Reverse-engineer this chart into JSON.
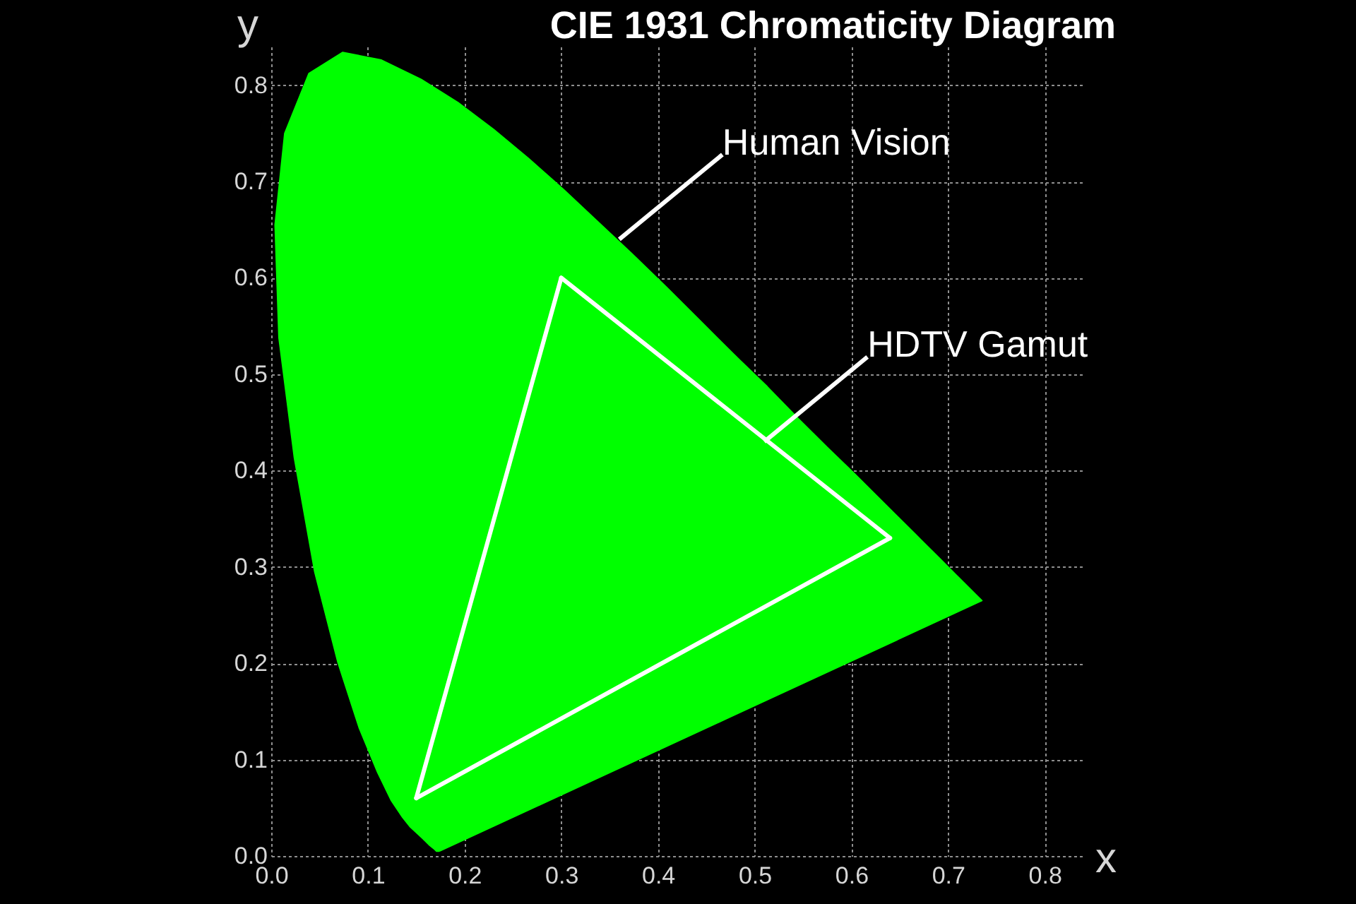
{
  "chart_data": {
    "type": "line",
    "title": "CIE 1931 Chromaticity Diagram",
    "xlabel": "x",
    "ylabel": "y",
    "series": [
      {
        "type": "area",
        "color": "#00ff00",
        "x": [
          0.174,
          0.171,
          0.169,
          0.164,
          0.157,
          0.144,
          0.136,
          0.124,
          0.11,
          0.091,
          0.069,
          0.045,
          0.024,
          0.008,
          0.004,
          0.014,
          0.039,
          0.074,
          0.114,
          0.155,
          0.193,
          0.23,
          0.266,
          0.302,
          0.337,
          0.373,
          0.409,
          0.444,
          0.479,
          0.513,
          0.545,
          0.575,
          0.603,
          0.627,
          0.666,
          0.692,
          0.708,
          0.719,
          0.73,
          0.735,
          0.174
        ],
        "values": [
          0.005,
          0.005,
          0.007,
          0.011,
          0.018,
          0.03,
          0.04,
          0.058,
          0.087,
          0.133,
          0.201,
          0.295,
          0.413,
          0.538,
          0.655,
          0.75,
          0.812,
          0.834,
          0.826,
          0.806,
          0.782,
          0.754,
          0.724,
          0.692,
          0.659,
          0.625,
          0.59,
          0.555,
          0.52,
          0.487,
          0.454,
          0.424,
          0.397,
          0.373,
          0.334,
          0.308,
          0.292,
          0.281,
          0.27,
          0.265,
          0.005
        ]
      },
      {
        "color": "#ffffff",
        "x": [
          0.3,
          0.64
        ],
        "values": [
          0.6,
          0.33
        ]
      },
      {
        "color": "#ffffff",
        "x": [
          0.15,
          0.3
        ],
        "values": [
          0.06,
          0.6
        ]
      },
      {
        "color": "#ffffff",
        "x": [
          0.15,
          0.64
        ],
        "values": [
          0.06,
          0.33
        ]
      }
    ],
    "annotations": [
      {
        "text": "Human Vision",
        "x": 0.36,
        "y": 0.64
      },
      {
        "text": "HDTV Gamut",
        "x": 0.51,
        "y": 0.43
      }
    ],
    "xlim": [
      0,
      0.84
    ],
    "ylim": [
      0,
      0.84
    ],
    "xticks": [
      {
        "value": 0,
        "label": "0.0"
      },
      0.1,
      0.2,
      0.3,
      0.4,
      0.5,
      0.6,
      0.7,
      0.8
    ],
    "yticks": [
      {
        "value": 0,
        "label": "0.0"
      },
      0.1,
      0.2,
      0.3,
      0.4,
      0.5,
      0.6,
      0.7,
      0.8
    ],
    "grid": true,
    "line_style": "solid"
  }
}
